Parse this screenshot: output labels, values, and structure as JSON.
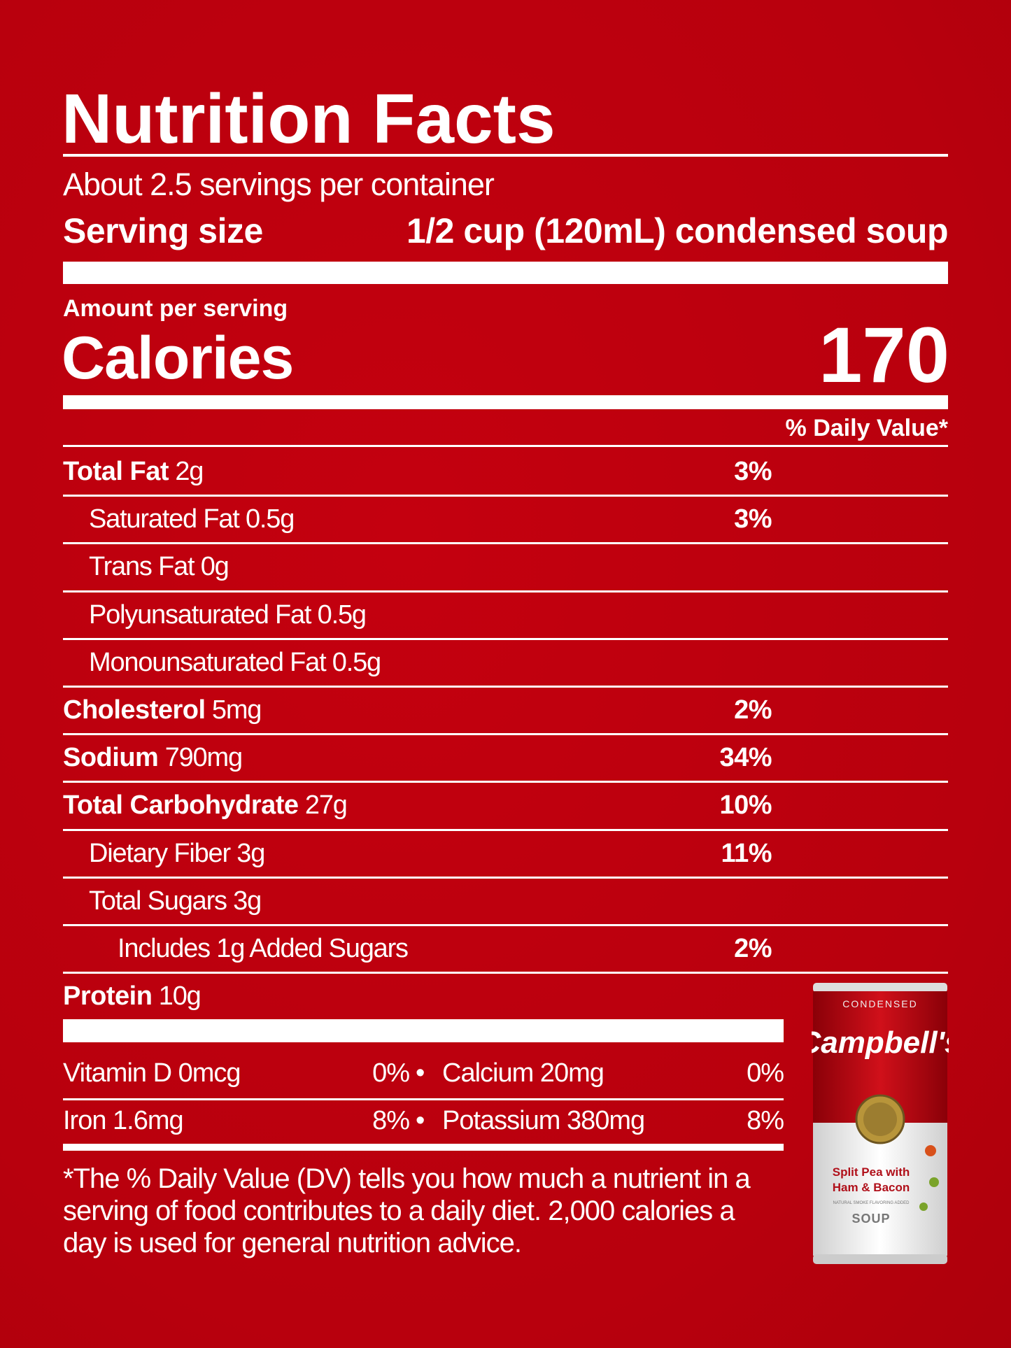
{
  "title": "Nutrition Facts",
  "servings": "About 2.5 servings per container",
  "serving_size": {
    "label": "Serving size",
    "value": "1/2 cup (120mL) condensed soup"
  },
  "amount_per_serving": "Amount per serving",
  "calories": {
    "label": "Calories",
    "value": "170"
  },
  "dv_header": "% Daily Value*",
  "nutrients": [
    {
      "name": "Total Fat",
      "amount": "2g",
      "dv": "3%",
      "sub": [
        {
          "name": "Saturated Fat 0.5g",
          "dv": "3%"
        },
        {
          "name": "Trans Fat 0g"
        },
        {
          "name": "Polyunsaturated Fat 0.5g"
        },
        {
          "name": "Monounsaturated Fat 0.5g"
        }
      ]
    },
    {
      "name": "Cholesterol",
      "amount": "5mg",
      "dv": "2%"
    },
    {
      "name": "Sodium",
      "amount": "790mg",
      "dv": "34%"
    },
    {
      "name": "Total Carbohydrate",
      "amount": "27g",
      "dv": "10%",
      "sub": [
        {
          "name": "Dietary Fiber 3g",
          "dv": "11%"
        },
        {
          "name": "Total Sugars 3g",
          "sub": [
            {
              "name": "Includes 1g Added Sugars",
              "dv": "2%"
            }
          ]
        }
      ]
    },
    {
      "name": "Protein",
      "amount": "10g"
    }
  ],
  "vitamins": [
    [
      {
        "name": "Vitamin D 0mcg",
        "dv": "0%"
      },
      {
        "name": "Calcium 20mg",
        "dv": "0%"
      }
    ],
    [
      {
        "name": "Iron 1.6mg",
        "dv": "8%"
      },
      {
        "name": "Potassium 380mg",
        "dv": "8%"
      }
    ]
  ],
  "footnote": "*The % Daily Value (DV) tells you how much a nutrient in a serving of food contributes to a daily diet. 2,000 calories a day is used for general nutrition advice.",
  "can": {
    "condensed": "CONDENSED",
    "brand": "Campbell's",
    "product_line1": "Split Pea with",
    "product_line2": "Ham & Bacon",
    "note": "NATURAL SMOKE FLAVORING ADDED",
    "soup": "SOUP"
  }
}
